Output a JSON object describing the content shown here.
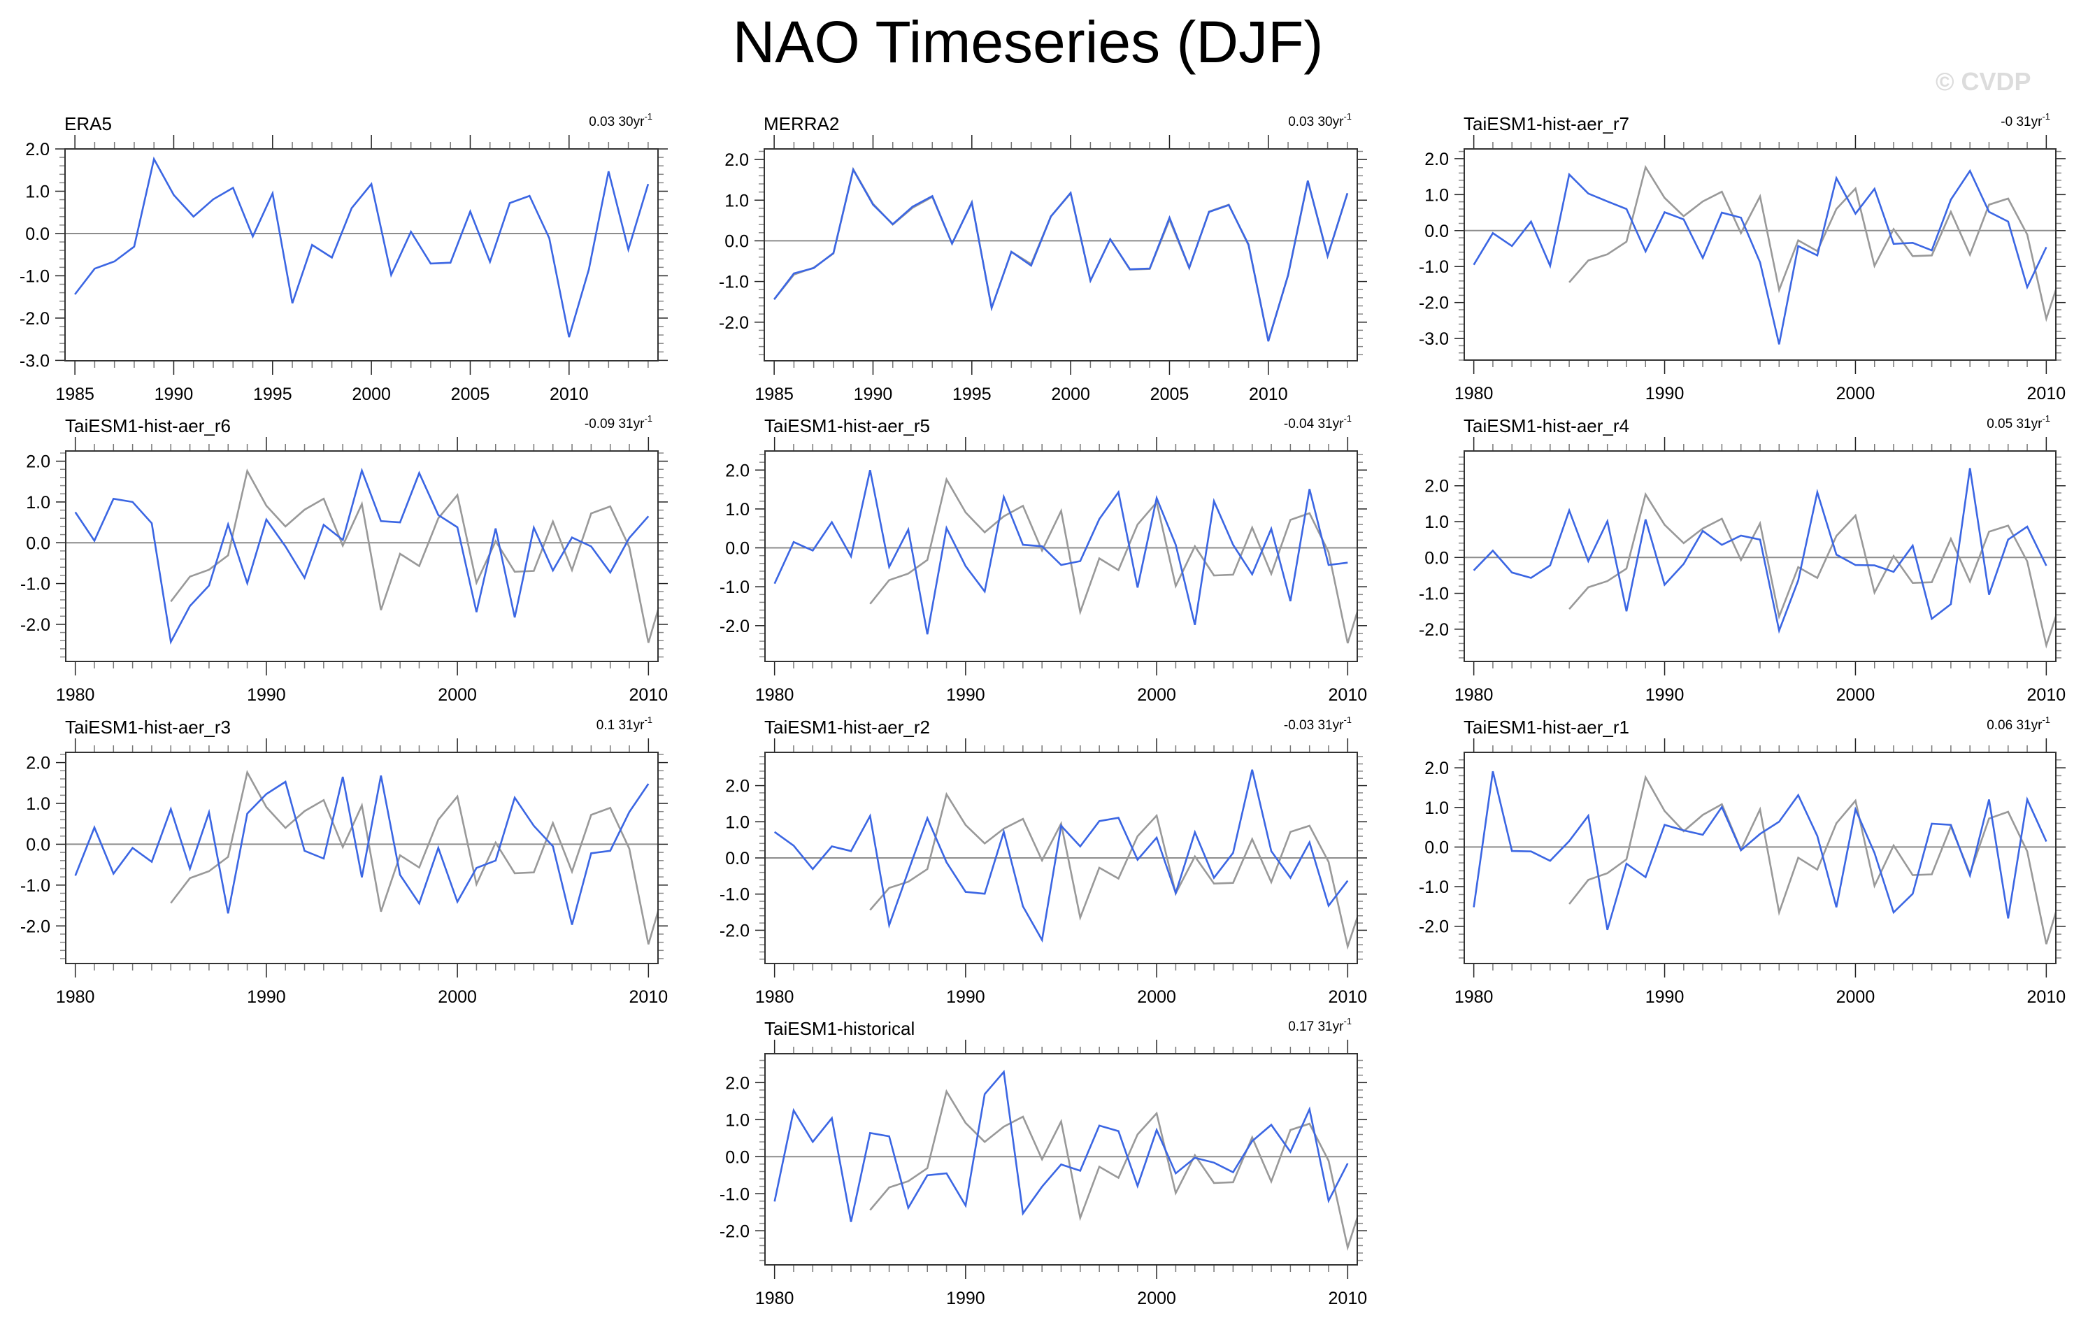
{
  "title": "NAO Timeseries (DJF)",
  "watermark": "© CVDP",
  "colors": {
    "model_line": "#3b66e3",
    "reference_line": "#999999",
    "zero_line": "#8c8c8c",
    "frame": "#333333"
  },
  "chart_data": [
    {
      "type": "line",
      "title": "ERA5",
      "trend": {
        "value": "0.03",
        "period": "30yr",
        "exponent": "-1"
      },
      "xlim": [
        1984.5,
        2014.5
      ],
      "ylim": [
        -3.01,
        2.0
      ],
      "xticks": [
        1985,
        1990,
        1995,
        2000,
        2005,
        2010
      ],
      "xtick_labels": [
        "1985",
        "1990",
        "1995",
        "2000",
        "2005",
        "2010"
      ],
      "yticks": [
        2,
        1,
        0,
        -1,
        -2,
        -3
      ],
      "ytick_labels": [
        "2.0",
        "1.0",
        "0.0",
        "-1.0",
        "-2.0",
        "-3.0"
      ],
      "x_start": 1985,
      "reference": null,
      "series": [
        {
          "name": "ERA5",
          "values": [
            -1.44,
            -0.83,
            -0.66,
            -0.31,
            1.76,
            0.91,
            0.4,
            0.81,
            1.08,
            -0.07,
            0.95,
            -1.65,
            -0.27,
            -0.57,
            0.6,
            1.17,
            -0.98,
            0.04,
            -0.71,
            -0.69,
            0.52,
            -0.67,
            0.72,
            0.89,
            -0.11,
            -2.45,
            -0.85,
            1.47,
            -0.38,
            1.17
          ]
        }
      ]
    },
    {
      "type": "line",
      "title": "MERRA2",
      "trend": {
        "value": "0.03",
        "period": "30yr",
        "exponent": "-1"
      },
      "xlim": [
        1984.5,
        2014.5
      ],
      "ylim": [
        -2.95,
        2.26
      ],
      "xticks": [
        1985,
        1990,
        1995,
        2000,
        2005,
        2010
      ],
      "xtick_labels": [
        "1985",
        "1990",
        "1995",
        "2000",
        "2005",
        "2010"
      ],
      "yticks": [
        2,
        1,
        0,
        -1,
        -2
      ],
      "ytick_labels": [
        "2.0",
        "1.0",
        "0.0",
        "-1.0",
        "-2.0"
      ],
      "x_start": 1985,
      "reference": "ERA5",
      "series": [
        {
          "name": "MERRA2",
          "values": [
            -1.44,
            -0.8,
            -0.67,
            -0.3,
            1.75,
            0.89,
            0.41,
            0.84,
            1.1,
            -0.07,
            0.94,
            -1.65,
            -0.27,
            -0.61,
            0.6,
            1.18,
            -0.98,
            0.04,
            -0.7,
            -0.68,
            0.57,
            -0.66,
            0.71,
            0.88,
            -0.09,
            -2.47,
            -0.84,
            1.48,
            -0.37,
            1.17
          ]
        }
      ]
    },
    {
      "type": "line",
      "title": "TaiESM1-hist-aer_r7",
      "trend": {
        "value": "-0",
        "period": "31yr",
        "exponent": "-1"
      },
      "xlim": [
        1979.5,
        2010.5
      ],
      "ylim": [
        -3.6,
        2.27
      ],
      "xticks": [
        1980,
        1990,
        2000,
        2010
      ],
      "xtick_labels": [
        "1980",
        "1990",
        "2000",
        "2010"
      ],
      "yticks": [
        2,
        1,
        0,
        -1,
        -2,
        -3
      ],
      "ytick_labels": [
        "2.0",
        "1.0",
        "0.0",
        "-1.0",
        "-2.0",
        "-3.0"
      ],
      "x_start": 1980,
      "reference": "ERA5",
      "series": [
        {
          "name": "TaiESM1-hist-aer_r7",
          "values": [
            -0.95,
            -0.07,
            -0.43,
            0.25,
            -0.98,
            1.56,
            1.03,
            0.81,
            0.6,
            -0.58,
            0.51,
            0.31,
            -0.76,
            0.5,
            0.36,
            -0.88,
            -3.16,
            -0.43,
            -0.69,
            1.46,
            0.47,
            1.16,
            -0.37,
            -0.34,
            -0.55,
            0.86,
            1.66,
            0.52,
            0.25,
            -1.57,
            -0.46
          ]
        }
      ]
    },
    {
      "type": "line",
      "title": "TaiESM1-hist-aer_r6",
      "trend": {
        "value": "-0.09",
        "period": "31yr",
        "exponent": "-1"
      },
      "xlim": [
        1979.5,
        2010.5
      ],
      "ylim": [
        -2.91,
        2.25
      ],
      "xticks": [
        1980,
        1990,
        2000,
        2010
      ],
      "xtick_labels": [
        "1980",
        "1990",
        "2000",
        "2010"
      ],
      "yticks": [
        2,
        1,
        0,
        -1,
        -2
      ],
      "ytick_labels": [
        "2.0",
        "1.0",
        "0.0",
        "-1.0",
        "-2.0"
      ],
      "x_start": 1980,
      "reference": "ERA5",
      "series": [
        {
          "name": "TaiESM1-hist-aer_r6",
          "values": [
            0.75,
            0.05,
            1.08,
            1.0,
            0.48,
            -2.43,
            -1.55,
            -1.05,
            0.45,
            -0.99,
            0.57,
            -0.09,
            -0.86,
            0.44,
            0.07,
            1.77,
            0.53,
            0.5,
            1.71,
            0.68,
            0.38,
            -1.7,
            0.35,
            -1.83,
            0.37,
            -0.68,
            0.13,
            -0.09,
            -0.73,
            0.12,
            0.65
          ]
        }
      ]
    },
    {
      "type": "line",
      "title": "TaiESM1-hist-aer_r5",
      "trend": {
        "value": "-0.04",
        "period": "31yr",
        "exponent": "-1"
      },
      "xlim": [
        1979.5,
        2010.5
      ],
      "ylim": [
        -2.92,
        2.49
      ],
      "xticks": [
        1980,
        1990,
        2000,
        2010
      ],
      "xtick_labels": [
        "1980",
        "1990",
        "2000",
        "2010"
      ],
      "yticks": [
        2,
        1,
        0,
        -1,
        -2
      ],
      "ytick_labels": [
        "2.0",
        "1.0",
        "0.0",
        "-1.0",
        "-2.0"
      ],
      "x_start": 1980,
      "reference": "ERA5",
      "series": [
        {
          "name": "TaiESM1-hist-aer_r5",
          "values": [
            -0.92,
            0.15,
            -0.07,
            0.66,
            -0.22,
            2.0,
            -0.49,
            0.47,
            -2.22,
            0.51,
            -0.47,
            -1.12,
            1.31,
            0.08,
            0.04,
            -0.44,
            -0.34,
            0.74,
            1.43,
            -1.02,
            1.28,
            0.08,
            -1.98,
            1.2,
            0.08,
            -0.68,
            0.49,
            -1.37,
            1.51,
            -0.44,
            -0.38
          ]
        }
      ]
    },
    {
      "type": "line",
      "title": "TaiESM1-hist-aer_r4",
      "trend": {
        "value": "0.05",
        "period": "31yr",
        "exponent": "-1"
      },
      "xlim": [
        1979.5,
        2010.5
      ],
      "ylim": [
        -2.9,
        2.97
      ],
      "xticks": [
        1980,
        1990,
        2000,
        2010
      ],
      "xtick_labels": [
        "1980",
        "1990",
        "2000",
        "2010"
      ],
      "yticks": [
        2,
        1,
        0,
        -1,
        -2
      ],
      "ytick_labels": [
        "2.0",
        "1.0",
        "0.0",
        "-1.0",
        "-2.0"
      ],
      "x_start": 1980,
      "reference": "ERA5",
      "series": [
        {
          "name": "TaiESM1-hist-aer_r4",
          "values": [
            -0.36,
            0.19,
            -0.42,
            -0.57,
            -0.22,
            1.31,
            -0.1,
            1.01,
            -1.5,
            1.06,
            -0.76,
            -0.18,
            0.74,
            0.35,
            0.61,
            0.5,
            -2.04,
            -0.64,
            1.82,
            0.08,
            -0.21,
            -0.22,
            -0.4,
            0.33,
            -1.71,
            -1.3,
            2.49,
            -1.04,
            0.5,
            0.86,
            -0.23
          ]
        }
      ]
    },
    {
      "type": "line",
      "title": "TaiESM1-hist-aer_r3",
      "trend": {
        "value": "0.1",
        "period": "31yr",
        "exponent": "-1"
      },
      "xlim": [
        1979.5,
        2010.5
      ],
      "ylim": [
        -2.92,
        2.25
      ],
      "xticks": [
        1980,
        1990,
        2000,
        2010
      ],
      "xtick_labels": [
        "1980",
        "1990",
        "2000",
        "2010"
      ],
      "yticks": [
        2,
        1,
        0,
        -1,
        -2
      ],
      "ytick_labels": [
        "2.0",
        "1.0",
        "0.0",
        "-1.0",
        "-2.0"
      ],
      "x_start": 1980,
      "reference": "ERA5",
      "series": [
        {
          "name": "TaiESM1-hist-aer_r3",
          "values": [
            -0.77,
            0.41,
            -0.72,
            -0.09,
            -0.43,
            0.86,
            -0.6,
            0.78,
            -1.69,
            0.75,
            1.23,
            1.53,
            -0.16,
            -0.35,
            1.65,
            -0.81,
            1.68,
            -0.75,
            -1.45,
            -0.09,
            -1.41,
            -0.58,
            -0.4,
            1.14,
            0.45,
            -0.05,
            -1.97,
            -0.22,
            -0.16,
            0.79,
            1.48
          ]
        }
      ]
    },
    {
      "type": "line",
      "title": "TaiESM1-hist-aer_r2",
      "trend": {
        "value": "-0.03",
        "period": "31yr",
        "exponent": "-1"
      },
      "xlim": [
        1979.5,
        2010.5
      ],
      "ylim": [
        -2.92,
        2.92
      ],
      "xticks": [
        1980,
        1990,
        2000,
        2010
      ],
      "xtick_labels": [
        "1980",
        "1990",
        "2000",
        "2010"
      ],
      "yticks": [
        2,
        1,
        0,
        -1,
        -2
      ],
      "ytick_labels": [
        "2.0",
        "1.0",
        "0.0",
        "-1.0",
        "-2.0"
      ],
      "x_start": 1980,
      "reference": "ERA5",
      "series": [
        {
          "name": "TaiESM1-hist-aer_r2",
          "values": [
            0.72,
            0.34,
            -0.31,
            0.32,
            0.19,
            1.16,
            -1.86,
            -0.37,
            1.1,
            -0.12,
            -0.94,
            -0.99,
            0.72,
            -1.34,
            -2.27,
            0.89,
            0.32,
            1.02,
            1.11,
            -0.05,
            0.56,
            -0.97,
            0.71,
            -0.55,
            0.14,
            2.44,
            0.19,
            -0.55,
            0.43,
            -1.32,
            -0.63
          ]
        }
      ]
    },
    {
      "type": "line",
      "title": "TaiESM1-hist-aer_r1",
      "trend": {
        "value": "0.06",
        "period": "31yr",
        "exponent": "-1"
      },
      "xlim": [
        1979.5,
        2010.5
      ],
      "ylim": [
        -2.94,
        2.39
      ],
      "xticks": [
        1980,
        1990,
        2000,
        2010
      ],
      "xtick_labels": [
        "1980",
        "1990",
        "2000",
        "2010"
      ],
      "yticks": [
        2,
        1,
        0,
        -1,
        -2
      ],
      "ytick_labels": [
        "2.0",
        "1.0",
        "0.0",
        "-1.0",
        "-2.0"
      ],
      "x_start": 1980,
      "reference": "ERA5",
      "series": [
        {
          "name": "TaiESM1-hist-aer_r1",
          "values": [
            -1.52,
            1.91,
            -0.1,
            -0.11,
            -0.35,
            0.15,
            0.79,
            -2.09,
            -0.42,
            -0.76,
            0.56,
            0.42,
            0.31,
            1.01,
            -0.08,
            0.33,
            0.64,
            1.31,
            0.28,
            -1.52,
            0.95,
            -0.15,
            -1.65,
            -1.18,
            0.59,
            0.56,
            -0.72,
            1.2,
            -1.8,
            1.2,
            0.14
          ]
        }
      ]
    },
    {
      "type": "line",
      "title": "TaiESM1-historical",
      "trend": {
        "value": "0.17",
        "period": "31yr",
        "exponent": "-1"
      },
      "xlim": [
        1979.5,
        2010.5
      ],
      "ylim": [
        -2.92,
        2.78
      ],
      "xticks": [
        1980,
        1990,
        2000,
        2010
      ],
      "xtick_labels": [
        "1980",
        "1990",
        "2000",
        "2010"
      ],
      "yticks": [
        2,
        1,
        0,
        -1,
        -2
      ],
      "ytick_labels": [
        "2.0",
        "1.0",
        "0.0",
        "-1.0",
        "-2.0"
      ],
      "x_start": 1980,
      "reference": "ERA5",
      "series": [
        {
          "name": "TaiESM1-historical",
          "values": [
            -1.21,
            1.25,
            0.4,
            1.04,
            -1.76,
            0.64,
            0.55,
            -1.38,
            -0.5,
            -0.45,
            -1.32,
            1.69,
            2.29,
            -1.53,
            -0.81,
            -0.21,
            -0.38,
            0.84,
            0.69,
            -0.79,
            0.72,
            -0.45,
            -0.03,
            -0.16,
            -0.42,
            0.42,
            0.86,
            0.13,
            1.28,
            -1.19,
            -0.18
          ]
        }
      ]
    }
  ]
}
